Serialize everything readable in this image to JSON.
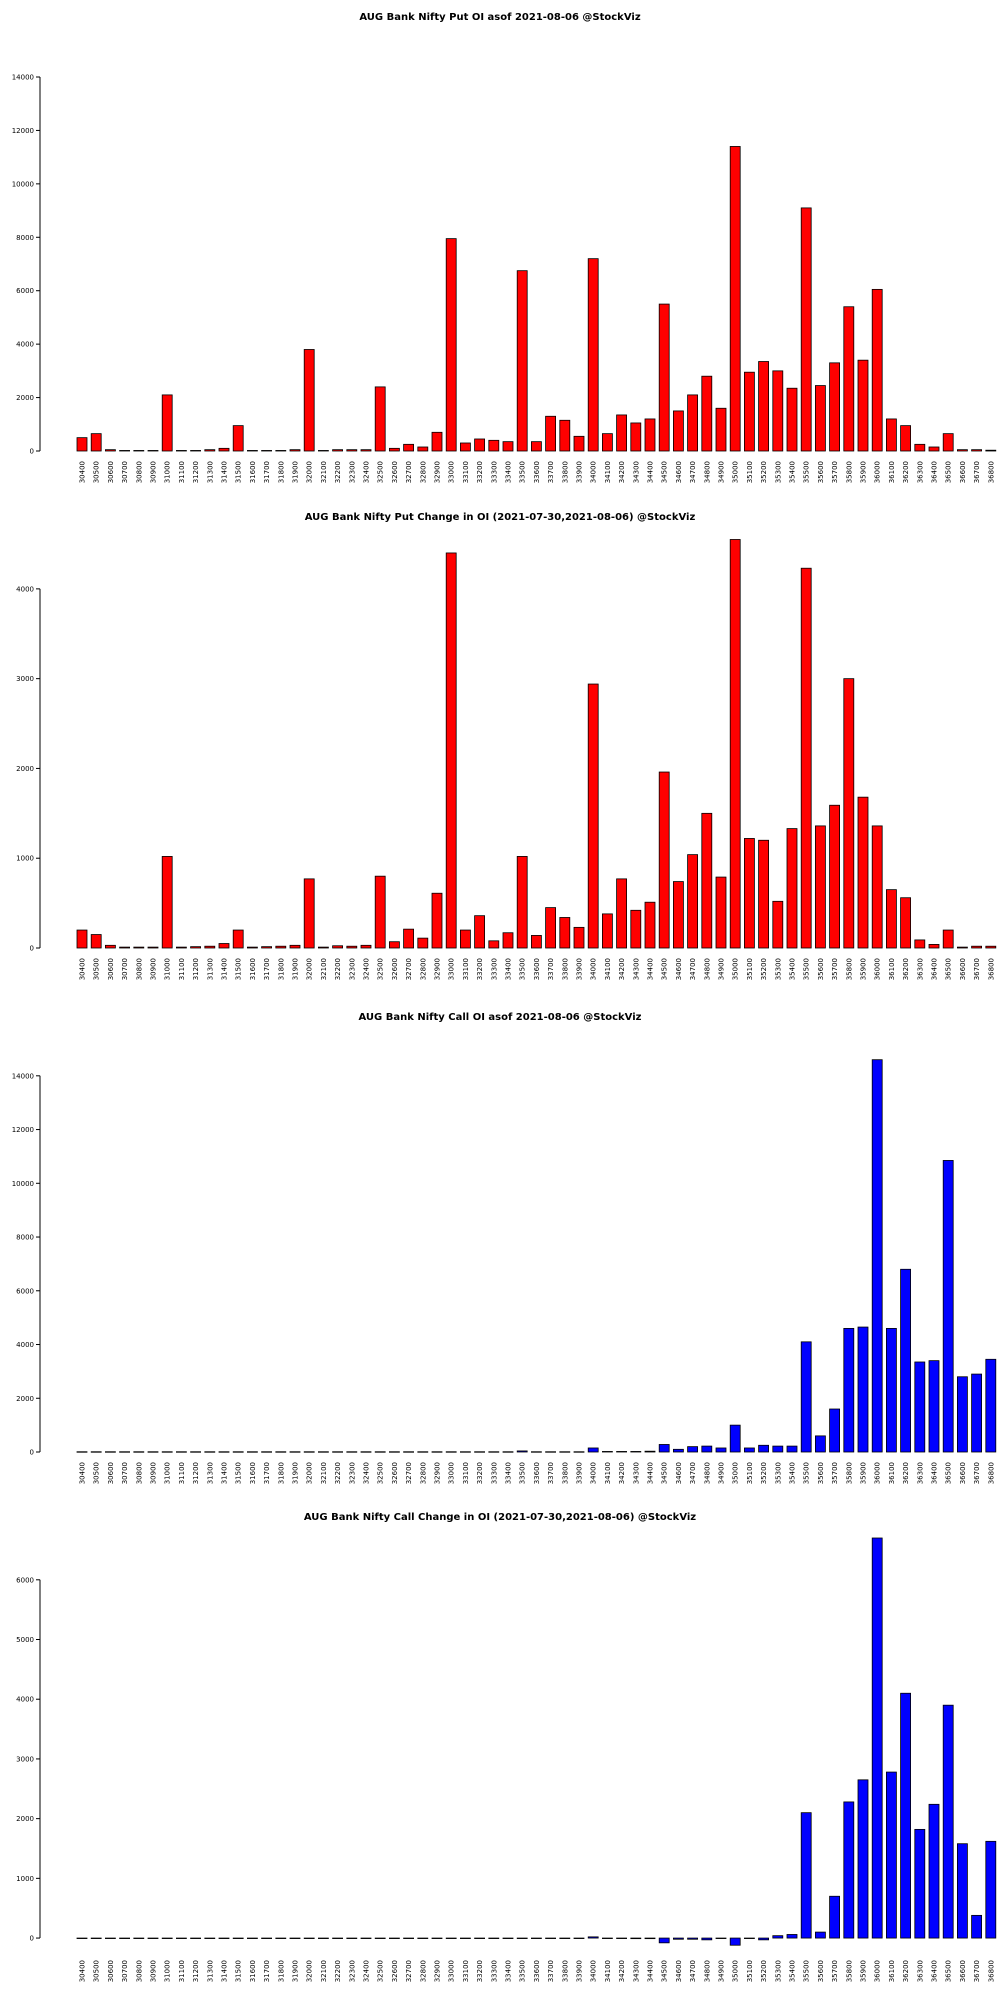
{
  "chart_data": [
    {
      "type": "bar",
      "title": "AUG Bank Nifty Put OI asof 2021-08-06 @StockViz",
      "color": "#ff0000",
      "categories": [
        "30400",
        "30500",
        "30600",
        "30700",
        "30800",
        "30900",
        "31000",
        "31100",
        "31200",
        "31300",
        "31400",
        "31500",
        "31600",
        "31700",
        "31800",
        "31900",
        "32000",
        "32100",
        "32200",
        "32300",
        "32400",
        "32500",
        "32600",
        "32700",
        "32800",
        "32900",
        "33000",
        "33100",
        "33200",
        "33300",
        "33400",
        "33500",
        "33600",
        "33700",
        "33800",
        "33900",
        "34000",
        "34100",
        "34200",
        "34300",
        "34400",
        "34500",
        "34600",
        "34700",
        "34800",
        "34900",
        "35000",
        "35100",
        "35200",
        "35300",
        "35400",
        "35500",
        "35600",
        "35700",
        "35800",
        "35900",
        "36000",
        "36100",
        "36200",
        "36300",
        "36400",
        "36500",
        "36600",
        "36700",
        "36800"
      ],
      "values": [
        500,
        650,
        50,
        20,
        20,
        20,
        2100,
        20,
        20,
        50,
        100,
        950,
        20,
        20,
        20,
        50,
        3800,
        20,
        50,
        50,
        50,
        2400,
        100,
        250,
        150,
        700,
        7950,
        300,
        450,
        400,
        350,
        6750,
        350,
        1300,
        1150,
        550,
        7200,
        650,
        1350,
        1050,
        1200,
        5500,
        1500,
        2100,
        2800,
        1600,
        11400,
        2950,
        3350,
        3000,
        2350,
        9100,
        2450,
        3300,
        5400,
        3400,
        6050,
        1200,
        950,
        250,
        150,
        650,
        50,
        50,
        30
      ],
      "ylim": [
        0,
        14000
      ],
      "yticks": [
        0,
        2000,
        4000,
        6000,
        8000,
        10000,
        12000,
        14000
      ]
    },
    {
      "type": "bar",
      "title": "AUG Bank Nifty Put Change in OI (2021-07-30,2021-08-06) @StockViz",
      "color": "#ff0000",
      "categories": [
        "30400",
        "30500",
        "30600",
        "30700",
        "30800",
        "30900",
        "31000",
        "31100",
        "31200",
        "31300",
        "31400",
        "31500",
        "31600",
        "31700",
        "31800",
        "31900",
        "32000",
        "32100",
        "32200",
        "32300",
        "32400",
        "32500",
        "32600",
        "32700",
        "32800",
        "32900",
        "33000",
        "33100",
        "33200",
        "33300",
        "33400",
        "33500",
        "33600",
        "33700",
        "33800",
        "33900",
        "34000",
        "34100",
        "34200",
        "34300",
        "34400",
        "34500",
        "34600",
        "34700",
        "34800",
        "34900",
        "35000",
        "35100",
        "35200",
        "35300",
        "35400",
        "35500",
        "35600",
        "35700",
        "35800",
        "35900",
        "36000",
        "36100",
        "36200",
        "36300",
        "36400",
        "36500",
        "36600",
        "36700",
        "36800"
      ],
      "values": [
        200,
        150,
        30,
        10,
        10,
        10,
        1020,
        10,
        15,
        20,
        50,
        200,
        10,
        15,
        20,
        30,
        770,
        10,
        25,
        20,
        30,
        800,
        70,
        210,
        110,
        610,
        4400,
        200,
        360,
        80,
        170,
        1020,
        140,
        450,
        340,
        230,
        2940,
        380,
        770,
        420,
        510,
        1960,
        740,
        1040,
        1500,
        790,
        4550,
        1220,
        1200,
        520,
        1330,
        4230,
        1360,
        1590,
        3000,
        1680,
        1360,
        650,
        560,
        90,
        40,
        200,
        10,
        20,
        20
      ],
      "ylim": [
        0,
        4600
      ],
      "yticks": [
        0,
        1000,
        2000,
        3000,
        4000
      ]
    },
    {
      "type": "bar",
      "title": "AUG Bank Nifty Call OI asof 2021-08-06 @StockViz",
      "color": "#0000ff",
      "categories": [
        "30400",
        "30500",
        "30600",
        "30700",
        "30800",
        "30900",
        "31000",
        "31100",
        "31200",
        "31300",
        "31400",
        "31500",
        "31600",
        "31700",
        "31800",
        "31900",
        "32000",
        "32100",
        "32200",
        "32300",
        "32400",
        "32500",
        "32600",
        "32700",
        "32800",
        "32900",
        "33000",
        "33100",
        "33200",
        "33300",
        "33400",
        "33500",
        "33600",
        "33700",
        "33800",
        "33900",
        "34000",
        "34100",
        "34200",
        "34300",
        "34400",
        "34500",
        "34600",
        "34700",
        "34800",
        "34900",
        "35000",
        "35100",
        "35200",
        "35300",
        "35400",
        "35500",
        "35600",
        "35700",
        "35800",
        "35900",
        "36000",
        "36100",
        "36200",
        "36300",
        "36400",
        "36500",
        "36600",
        "36700",
        "36800"
      ],
      "values": [
        10,
        10,
        10,
        10,
        10,
        10,
        10,
        10,
        10,
        10,
        10,
        10,
        10,
        10,
        10,
        10,
        10,
        10,
        10,
        10,
        10,
        10,
        10,
        10,
        10,
        10,
        10,
        10,
        10,
        10,
        10,
        40,
        10,
        10,
        10,
        10,
        150,
        20,
        20,
        20,
        30,
        280,
        100,
        200,
        220,
        150,
        1000,
        150,
        250,
        220,
        220,
        4100,
        600,
        1600,
        4600,
        4650,
        14600,
        4600,
        6800,
        3350,
        3400,
        10850,
        2800,
        2900,
        3450
      ],
      "ylim": [
        0,
        14700
      ],
      "yticks": [
        0,
        2000,
        4000,
        6000,
        8000,
        10000,
        12000,
        14000
      ]
    },
    {
      "type": "bar",
      "title": "AUG Bank Nifty Call Change in OI (2021-07-30,2021-08-06) @StockViz",
      "color": "#0000ff",
      "categories": [
        "30400",
        "30500",
        "30600",
        "30700",
        "30800",
        "30900",
        "31000",
        "31100",
        "31200",
        "31300",
        "31400",
        "31500",
        "31600",
        "31700",
        "31800",
        "31900",
        "32000",
        "32100",
        "32200",
        "32300",
        "32400",
        "32500",
        "32600",
        "32700",
        "32800",
        "32900",
        "33000",
        "33100",
        "33200",
        "33300",
        "33400",
        "33500",
        "33600",
        "33700",
        "33800",
        "33900",
        "34000",
        "34100",
        "34200",
        "34300",
        "34400",
        "34500",
        "34600",
        "34700",
        "34800",
        "34900",
        "35000",
        "35100",
        "35200",
        "35300",
        "35400",
        "35500",
        "35600",
        "35700",
        "35800",
        "35900",
        "36000",
        "36100",
        "36200",
        "36300",
        "36400",
        "36500",
        "36600",
        "36700",
        "36800"
      ],
      "values": [
        -5,
        -5,
        -5,
        -5,
        -5,
        -5,
        -5,
        -5,
        -5,
        -5,
        -5,
        -5,
        -5,
        -5,
        -5,
        -5,
        -5,
        -5,
        -5,
        -5,
        -5,
        -5,
        -5,
        -5,
        -5,
        -5,
        -5,
        -5,
        -5,
        -5,
        -5,
        -5,
        -5,
        -5,
        -5,
        -5,
        20,
        -5,
        -5,
        -10,
        -10,
        -80,
        -20,
        -20,
        -30,
        -5,
        -120,
        -5,
        -30,
        40,
        60,
        2100,
        100,
        700,
        2280,
        2650,
        6700,
        2780,
        4100,
        1820,
        2240,
        3900,
        1580,
        380,
        1620
      ],
      "ylim": [
        -200,
        6700
      ],
      "yticks": [
        0,
        1000,
        2000,
        3000,
        4000,
        5000,
        6000
      ]
    }
  ]
}
